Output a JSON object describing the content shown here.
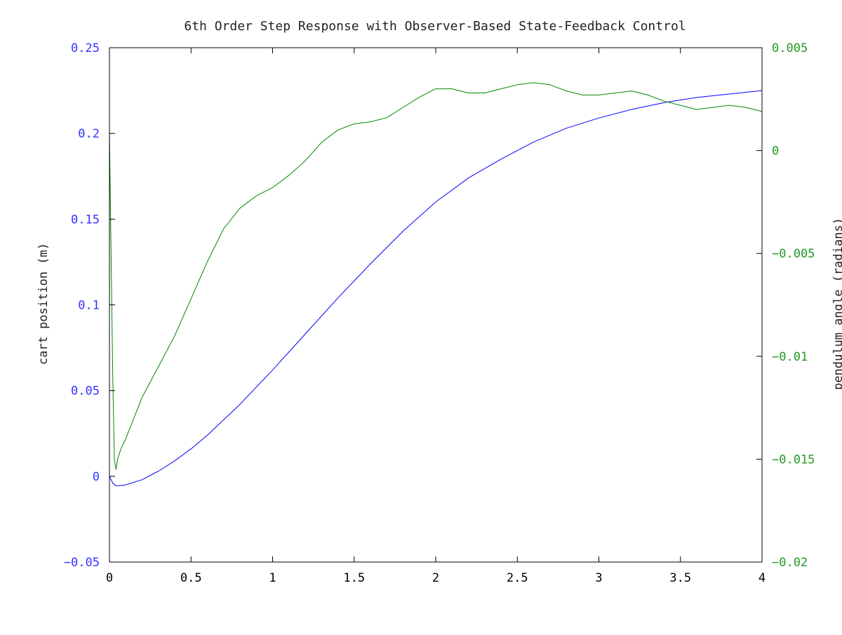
{
  "chart_data": {
    "type": "line",
    "title": "6th Order Step Response with Observer-Based State-Feedback Control",
    "xlabel": "",
    "ylabel": "cart position (m)",
    "y2label": "pendulum angle (radians)",
    "xlim": [
      0,
      4
    ],
    "ylim": [
      -0.05,
      0.25
    ],
    "y2lim": [
      -0.02,
      0.005
    ],
    "grid": false,
    "xticks": [
      0,
      0.5,
      1,
      1.5,
      2,
      2.5,
      3,
      3.5,
      4
    ],
    "xtick_labels": [
      "0",
      "0.5",
      "1",
      "1.5",
      "2",
      "2.5",
      "3",
      "3.5",
      "4"
    ],
    "yticks": [
      -0.05,
      0,
      0.05,
      0.1,
      0.15,
      0.2,
      0.25
    ],
    "ytick_labels": [
      "−0.05",
      "0",
      "0.05",
      "0.1",
      "0.15",
      "0.2",
      "0.25"
    ],
    "y2ticks": [
      -0.02,
      -0.015,
      -0.01,
      -0.005,
      0,
      0.005
    ],
    "y2tick_labels": [
      "−0.02",
      "−0.015",
      "−0.01",
      "−0.005",
      "0",
      "0.005"
    ],
    "colors": {
      "left_axis": "#3333ff",
      "right_axis": "#229922",
      "cart": "#0000ff",
      "pendulum": "#008800",
      "frame": "#000000"
    },
    "series": [
      {
        "name": "cart position",
        "axis": "left",
        "color": "#0000ff",
        "x": [
          0,
          0.02,
          0.04,
          0.06,
          0.1,
          0.2,
          0.3,
          0.4,
          0.5,
          0.6,
          0.8,
          1.0,
          1.2,
          1.4,
          1.6,
          1.8,
          2.0,
          2.2,
          2.4,
          2.6,
          2.8,
          3.0,
          3.2,
          3.4,
          3.6,
          3.8,
          4.0
        ],
        "y": [
          0,
          -0.004,
          -0.0055,
          -0.0055,
          -0.005,
          -0.002,
          0.003,
          0.009,
          0.016,
          0.024,
          0.042,
          0.062,
          0.083,
          0.104,
          0.124,
          0.143,
          0.16,
          0.174,
          0.185,
          0.195,
          0.203,
          0.209,
          0.214,
          0.218,
          0.221,
          0.223,
          0.225
        ]
      },
      {
        "name": "pendulum angle",
        "axis": "right",
        "color": "#008800",
        "x": [
          0,
          0.01,
          0.02,
          0.03,
          0.04,
          0.05,
          0.07,
          0.1,
          0.15,
          0.2,
          0.3,
          0.4,
          0.5,
          0.6,
          0.7,
          0.8,
          0.9,
          1.0,
          1.1,
          1.2,
          1.3,
          1.4,
          1.5,
          1.6,
          1.7,
          1.8,
          1.9,
          2.0,
          2.1,
          2.2,
          2.3,
          2.4,
          2.5,
          2.6,
          2.7,
          2.8,
          2.9,
          3.0,
          3.1,
          3.2,
          3.3,
          3.4,
          3.5,
          3.6,
          3.7,
          3.8,
          3.9,
          4.0
        ],
        "y": [
          0.0009,
          -0.005,
          -0.011,
          -0.015,
          -0.0155,
          -0.015,
          -0.0145,
          -0.014,
          -0.013,
          -0.012,
          -0.0105,
          -0.009,
          -0.0072,
          -0.0054,
          -0.0038,
          -0.0028,
          -0.0022,
          -0.0018,
          -0.0012,
          -0.0005,
          0.0004,
          0.001,
          0.0013,
          0.0014,
          0.0016,
          0.0021,
          0.0026,
          0.003,
          0.003,
          0.0028,
          0.0028,
          0.003,
          0.0032,
          0.0033,
          0.0032,
          0.0029,
          0.0027,
          0.0027,
          0.0028,
          0.0029,
          0.0027,
          0.0024,
          0.0022,
          0.002,
          0.0021,
          0.0022,
          0.0021,
          0.0019
        ]
      }
    ]
  }
}
